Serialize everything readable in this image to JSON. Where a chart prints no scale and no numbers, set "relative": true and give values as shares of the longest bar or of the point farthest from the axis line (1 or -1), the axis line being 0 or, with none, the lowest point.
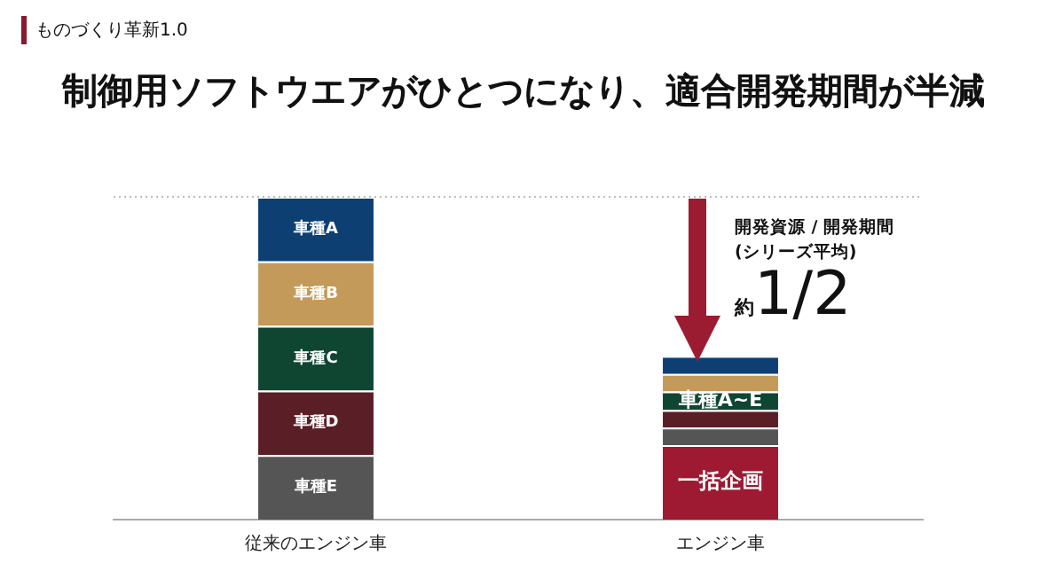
{
  "chart_data": {
    "type": "bar",
    "title": "制御用ソフトウエアがひとつになり、適合開発期間が半減",
    "categories": [
      "従来のエンジン車",
      "エンジン車"
    ],
    "stacked": true,
    "relative": true,
    "legend": false,
    "grid": false,
    "series": [
      {
        "name": "一括企画",
        "color": "#9e1a32",
        "values": [
          null,
          0.231
        ]
      },
      {
        "name": "車種E",
        "color": "#555555",
        "values": [
          0.2,
          0.054
        ]
      },
      {
        "name": "車種D",
        "color": "#5a1e26",
        "values": [
          0.2,
          0.054
        ]
      },
      {
        "name": "車種C",
        "color": "#0e4632",
        "values": [
          0.2,
          0.058
        ]
      },
      {
        "name": "車種B",
        "color": "#c49a5a",
        "values": [
          0.2,
          0.054
        ]
      },
      {
        "name": "車種A",
        "color": "#0d3f73",
        "values": [
          0.2,
          0.056
        ]
      }
    ],
    "ref_lines": [
      {
        "axis": "y",
        "value": 1,
        "line_style": "dotted",
        "color": "#bbbbbb"
      }
    ],
    "annotations": [
      "ものづくり革新1.0",
      "開発資源 / 開発期間\n(シリーズ平均)",
      "約1/2",
      {
        "text": "車種A~E",
        "x": "エンジン車",
        "y": 0.368
      }
    ]
  }
}
